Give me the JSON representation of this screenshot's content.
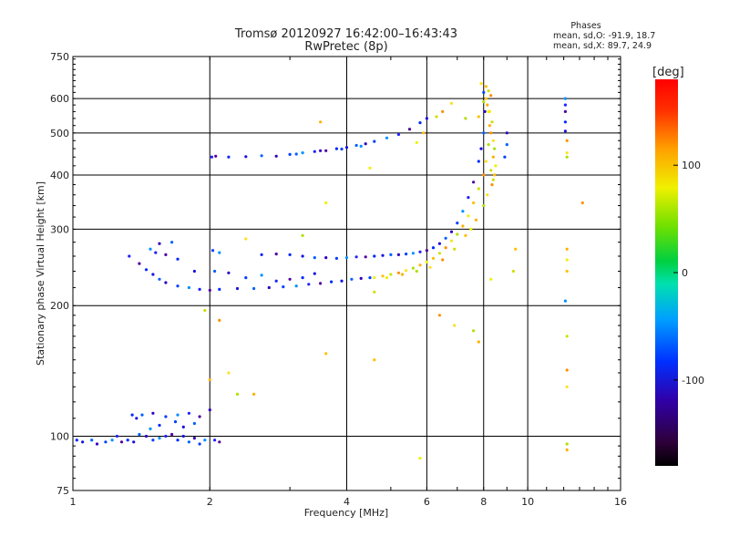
{
  "chart_data": {
    "type": "scatter",
    "title": "Tromsø 20120927 16:42:00–16:43:43",
    "subtitle": "RwPretec (8p)",
    "xlabel": "Frequency [MHz]",
    "ylabel": "Stationary phase Virtual Height [km]",
    "x_scale": "log",
    "y_scale": "log",
    "xlim": [
      1,
      16
    ],
    "ylim": [
      75,
      750
    ],
    "x_ticks": [
      1,
      2,
      4,
      6,
      8,
      10,
      16
    ],
    "x_tick_labels": [
      "1",
      "2",
      "4",
      "6",
      "8",
      "10",
      "16"
    ],
    "y_ticks": [
      75,
      100,
      200,
      300,
      400,
      500,
      600,
      750
    ],
    "y_tick_labels": [
      "75",
      "100",
      "200",
      "300",
      "400",
      "500",
      "600",
      "750"
    ],
    "grid": true,
    "legend": {
      "title": "Phases",
      "line1": "mean, sd,O: -91.9, 18.7",
      "line2": "mean, sd,X:  89.7, 24.9",
      "position": "top-right"
    },
    "colorbar": {
      "label": "[deg]",
      "range": [
        -180,
        180
      ],
      "ticks": [
        100,
        0,
        -100
      ],
      "tick_labels": [
        "100",
        "0",
        "-100"
      ]
    },
    "series": [
      {
        "name": "O",
        "phase_mean": -91.9,
        "phase_sd": 18.7,
        "points": [
          [
            1.02,
            98
          ],
          [
            1.05,
            97
          ],
          [
            1.1,
            98
          ],
          [
            1.13,
            96
          ],
          [
            1.18,
            97
          ],
          [
            1.22,
            98
          ],
          [
            1.25,
            100
          ],
          [
            1.28,
            97
          ],
          [
            1.32,
            98
          ],
          [
            1.36,
            97
          ],
          [
            1.4,
            101
          ],
          [
            1.45,
            100
          ],
          [
            1.5,
            98
          ],
          [
            1.55,
            99
          ],
          [
            1.6,
            100
          ],
          [
            1.65,
            101
          ],
          [
            1.7,
            98
          ],
          [
            1.75,
            100
          ],
          [
            1.8,
            97
          ],
          [
            1.85,
            99
          ],
          [
            1.9,
            96
          ],
          [
            1.95,
            98
          ],
          [
            2.05,
            98
          ],
          [
            2.1,
            97
          ],
          [
            1.35,
            112
          ],
          [
            1.38,
            110
          ],
          [
            1.42,
            112
          ],
          [
            1.5,
            113
          ],
          [
            1.6,
            111
          ],
          [
            1.7,
            112
          ],
          [
            1.8,
            113
          ],
          [
            1.9,
            111
          ],
          [
            1.55,
            106
          ],
          [
            1.75,
            105
          ],
          [
            1.85,
            107
          ],
          [
            2.0,
            115
          ],
          [
            1.68,
            108
          ],
          [
            1.48,
            104
          ],
          [
            2.02,
            440
          ],
          [
            2.06,
            442
          ],
          [
            2.2,
            440
          ],
          [
            2.4,
            441
          ],
          [
            2.6,
            443
          ],
          [
            2.8,
            442
          ],
          [
            3.0,
            446
          ],
          [
            3.2,
            450
          ],
          [
            3.4,
            453
          ],
          [
            3.6,
            455
          ],
          [
            3.8,
            460
          ],
          [
            4.0,
            463
          ],
          [
            4.2,
            468
          ],
          [
            4.4,
            472
          ],
          [
            4.6,
            478
          ],
          [
            4.9,
            487
          ],
          [
            5.2,
            496
          ],
          [
            5.5,
            510
          ],
          [
            5.8,
            528
          ],
          [
            6.0,
            540
          ],
          [
            3.1,
            447
          ],
          [
            3.5,
            455
          ],
          [
            3.9,
            459
          ],
          [
            4.3,
            466
          ],
          [
            1.33,
            260
          ],
          [
            1.4,
            250
          ],
          [
            1.45,
            242
          ],
          [
            1.5,
            236
          ],
          [
            1.55,
            230
          ],
          [
            1.6,
            226
          ],
          [
            1.7,
            222
          ],
          [
            1.8,
            220
          ],
          [
            1.9,
            218
          ],
          [
            2.0,
            217
          ],
          [
            2.1,
            218
          ],
          [
            2.3,
            219
          ],
          [
            2.5,
            219
          ],
          [
            2.7,
            220
          ],
          [
            2.9,
            221
          ],
          [
            3.1,
            222
          ],
          [
            3.3,
            224
          ],
          [
            3.5,
            225
          ],
          [
            3.7,
            227
          ],
          [
            3.9,
            228
          ],
          [
            4.1,
            230
          ],
          [
            4.3,
            231
          ],
          [
            4.5,
            232
          ],
          [
            1.48,
            270
          ],
          [
            1.52,
            265
          ],
          [
            1.6,
            262
          ],
          [
            1.7,
            256
          ],
          [
            1.85,
            240
          ],
          [
            2.05,
            240
          ],
          [
            2.2,
            238
          ],
          [
            2.4,
            232
          ],
          [
            2.6,
            235
          ],
          [
            2.8,
            228
          ],
          [
            3.0,
            230
          ],
          [
            3.2,
            232
          ],
          [
            3.4,
            237
          ],
          [
            1.65,
            280
          ],
          [
            1.55,
            278
          ],
          [
            2.03,
            268
          ],
          [
            2.1,
            265
          ],
          [
            2.6,
            262
          ],
          [
            2.8,
            263
          ],
          [
            3.0,
            262
          ],
          [
            3.2,
            260
          ],
          [
            3.4,
            258
          ],
          [
            3.6,
            258
          ],
          [
            3.8,
            257
          ],
          [
            4.0,
            258
          ],
          [
            4.2,
            259
          ],
          [
            4.4,
            259
          ],
          [
            4.6,
            260
          ],
          [
            4.8,
            261
          ],
          [
            5.0,
            262
          ],
          [
            5.2,
            262
          ],
          [
            5.4,
            263
          ],
          [
            5.6,
            264
          ],
          [
            5.8,
            266
          ],
          [
            6.0,
            268
          ],
          [
            6.2,
            272
          ],
          [
            6.4,
            278
          ],
          [
            6.6,
            286
          ],
          [
            6.8,
            296
          ],
          [
            7.0,
            310
          ],
          [
            7.2,
            330
          ],
          [
            7.4,
            355
          ],
          [
            7.6,
            385
          ],
          [
            7.8,
            430
          ],
          [
            7.9,
            460
          ],
          [
            8.0,
            500
          ],
          [
            8.05,
            560
          ],
          [
            8.0,
            620
          ],
          [
            12.1,
            600
          ],
          [
            12.1,
            580
          ],
          [
            12.1,
            560
          ],
          [
            12.1,
            530
          ],
          [
            12.1,
            505
          ],
          [
            9.0,
            470
          ],
          [
            9.0,
            500
          ],
          [
            8.9,
            440
          ],
          [
            12.1,
            205
          ]
        ]
      },
      {
        "name": "X",
        "phase_mean": 89.7,
        "phase_sd": 24.9,
        "points": [
          [
            4.6,
            232
          ],
          [
            4.8,
            234
          ],
          [
            5.0,
            236
          ],
          [
            5.2,
            238
          ],
          [
            5.4,
            241
          ],
          [
            5.6,
            244
          ],
          [
            5.8,
            248
          ],
          [
            6.0,
            252
          ],
          [
            6.2,
            257
          ],
          [
            6.4,
            264
          ],
          [
            6.6,
            272
          ],
          [
            6.8,
            282
          ],
          [
            7.0,
            292
          ],
          [
            7.2,
            305
          ],
          [
            7.4,
            322
          ],
          [
            7.6,
            345
          ],
          [
            7.8,
            372
          ],
          [
            8.0,
            400
          ],
          [
            8.1,
            430
          ],
          [
            8.2,
            470
          ],
          [
            8.25,
            520
          ],
          [
            8.2,
            560
          ],
          [
            8.1,
            600
          ],
          [
            8.3,
            410
          ],
          [
            8.35,
            380
          ],
          [
            8.15,
            360
          ],
          [
            8.0,
            340
          ],
          [
            7.7,
            315
          ],
          [
            7.5,
            300
          ],
          [
            7.3,
            290
          ],
          [
            6.9,
            270
          ],
          [
            6.5,
            255
          ],
          [
            6.1,
            245
          ],
          [
            5.7,
            240
          ],
          [
            5.3,
            236
          ],
          [
            4.9,
            232
          ],
          [
            8.1,
            640
          ],
          [
            8.2,
            625
          ],
          [
            8.3,
            610
          ],
          [
            7.9,
            650
          ],
          [
            8.0,
            590
          ],
          [
            8.15,
            580
          ],
          [
            8.25,
            560
          ],
          [
            7.8,
            545
          ],
          [
            8.35,
            530
          ],
          [
            8.3,
            500
          ],
          [
            8.4,
            480
          ],
          [
            8.45,
            460
          ],
          [
            8.4,
            440
          ],
          [
            8.5,
            420
          ],
          [
            8.45,
            400
          ],
          [
            8.4,
            390
          ],
          [
            12.2,
            480
          ],
          [
            12.2,
            450
          ],
          [
            12.2,
            440
          ],
          [
            12.2,
            270
          ],
          [
            12.2,
            255
          ],
          [
            12.2,
            240
          ],
          [
            12.2,
            170
          ],
          [
            12.2,
            142
          ],
          [
            12.2,
            130
          ],
          [
            12.2,
            96
          ],
          [
            12.2,
            93
          ],
          [
            5.7,
            475
          ],
          [
            5.9,
            500
          ],
          [
            6.3,
            545
          ],
          [
            6.5,
            560
          ],
          [
            6.8,
            585
          ],
          [
            7.3,
            540
          ],
          [
            3.5,
            530
          ],
          [
            3.6,
            345
          ],
          [
            3.6,
            155
          ],
          [
            1.95,
            195
          ],
          [
            2.1,
            185
          ],
          [
            2.2,
            140
          ],
          [
            2.3,
            125
          ],
          [
            2.5,
            125
          ],
          [
            4.5,
            415
          ],
          [
            4.6,
            150
          ],
          [
            4.6,
            215
          ],
          [
            6.4,
            190
          ],
          [
            6.9,
            180
          ],
          [
            7.6,
            175
          ],
          [
            7.8,
            165
          ],
          [
            8.3,
            230
          ],
          [
            9.4,
            270
          ],
          [
            9.3,
            240
          ],
          [
            13.2,
            345
          ],
          [
            2.4,
            285
          ],
          [
            3.2,
            290
          ],
          [
            2.0,
            135
          ],
          [
            5.8,
            89
          ]
        ]
      }
    ]
  }
}
